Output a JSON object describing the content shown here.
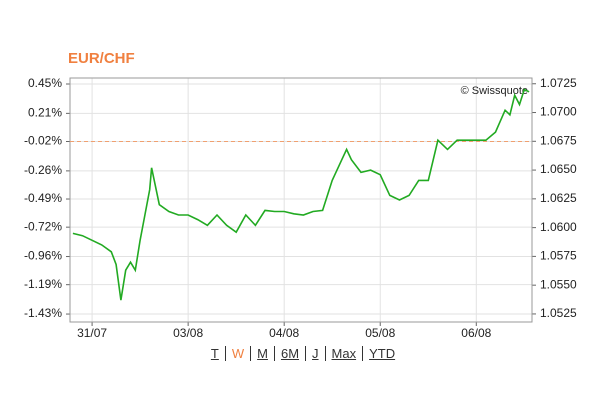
{
  "chart_data": {
    "type": "line",
    "title": "EUR/CHF",
    "watermark": "© Swissquote",
    "x": [
      -0.2,
      -0.1,
      0,
      0.1,
      0.2,
      0.25,
      0.3,
      0.35,
      0.4,
      0.45,
      0.5,
      0.55,
      0.6,
      0.62,
      0.7,
      0.8,
      0.9,
      1.0,
      1.1,
      1.2,
      1.3,
      1.4,
      1.5,
      1.6,
      1.7,
      1.8,
      1.9,
      2.0,
      2.1,
      2.2,
      2.3,
      2.4,
      2.5,
      2.6,
      2.65,
      2.7,
      2.8,
      2.9,
      3.0,
      3.1,
      3.2,
      3.3,
      3.4,
      3.5,
      3.6,
      3.7,
      3.8,
      3.9,
      4.0,
      4.1,
      4.2,
      4.3,
      4.35,
      4.4,
      4.45,
      4.5,
      4.55
    ],
    "series": [
      {
        "color": "#22aa22",
        "axis": "y2",
        "values": [
          1.0595,
          1.0593,
          1.0589,
          1.0585,
          1.0579,
          1.0568,
          1.0537,
          1.0563,
          1.057,
          1.0563,
          1.0589,
          1.0611,
          1.0633,
          1.0652,
          1.062,
          1.0614,
          1.0611,
          1.0611,
          1.0607,
          1.0602,
          1.0611,
          1.0602,
          1.0596,
          1.0611,
          1.0602,
          1.0615,
          1.0614,
          1.0614,
          1.0612,
          1.0611,
          1.0614,
          1.0615,
          1.0641,
          1.0659,
          1.0668,
          1.0659,
          1.0648,
          1.065,
          1.0646,
          1.0628,
          1.0624,
          1.0628,
          1.0641,
          1.0641,
          1.0676,
          1.0668,
          1.0676,
          1.0676,
          1.0676,
          1.0676,
          1.0683,
          1.0702,
          1.0698,
          1.0715,
          1.0707,
          1.072,
          1.0718
        ]
      }
    ],
    "xlim": [
      -0.23,
      4.58
    ],
    "xticks": [
      {
        "value": 0,
        "label": "31/07"
      },
      {
        "value": 1,
        "label": "03/08"
      },
      {
        "value": 2,
        "label": "04/08"
      },
      {
        "value": 3,
        "label": "05/08"
      },
      {
        "value": 4,
        "label": "06/08"
      }
    ],
    "ylim": [
      -1.495,
      0.499
    ],
    "yticks": [
      {
        "value": 0.45,
        "label": "0.45%"
      },
      {
        "value": 0.21,
        "label": "0.21%"
      },
      {
        "value": -0.02,
        "label": "-0.02%"
      },
      {
        "value": -0.26,
        "label": "-0.26%"
      },
      {
        "value": -0.49,
        "label": "-0.49%"
      },
      {
        "value": -0.72,
        "label": "-0.72%"
      },
      {
        "value": -0.96,
        "label": "-0.96%"
      },
      {
        "value": -1.19,
        "label": "-1.19%"
      },
      {
        "value": -1.43,
        "label": "-1.43%"
      }
    ],
    "y2lim": [
      1.0518,
      1.073
    ],
    "y2ticks": [
      1.0725,
      {
        "value": 1.07,
        "label": "1.0700"
      },
      1.0675,
      {
        "value": 1.065,
        "label": "1.0650"
      },
      1.0625,
      {
        "value": 1.06,
        "label": "1.0600"
      },
      1.0575,
      {
        "value": 1.055,
        "label": "1.0550"
      },
      1.0525
    ],
    "reference_line": -0.02,
    "reference_color": "#f0a070",
    "grid": true,
    "periods": [
      "T",
      "W",
      "M",
      "6M",
      "J",
      "Max",
      "YTD"
    ],
    "selected_period": 1,
    "selected_color": "#f08040"
  }
}
